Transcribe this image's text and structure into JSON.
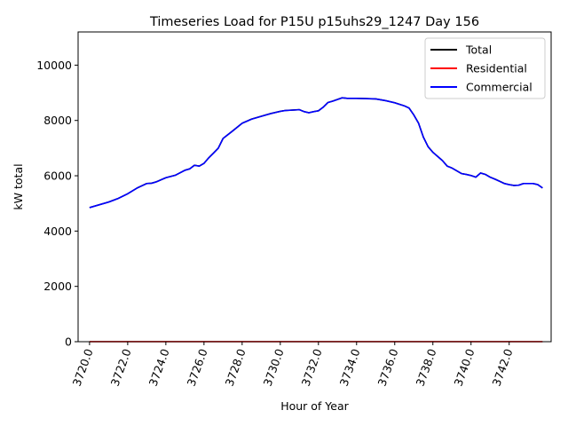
{
  "chart_data": {
    "type": "line",
    "title": "Timeseries Load for P15U p15uhs29_1247  Day 156",
    "xlabel": "Hour of Year",
    "ylabel": "kW total",
    "xlim": [
      3719.4,
      3744.2
    ],
    "ylim": [
      0,
      11200
    ],
    "xticks": [
      3720,
      3722,
      3724,
      3726,
      3728,
      3730,
      3732,
      3734,
      3736,
      3738,
      3740,
      3742
    ],
    "xtick_labels": [
      "3720.0",
      "3722.0",
      "3724.0",
      "3726.0",
      "3728.0",
      "3730.0",
      "3732.0",
      "3734.0",
      "3736.0",
      "3738.0",
      "3740.0",
      "3742.0"
    ],
    "yticks": [
      0,
      2000,
      4000,
      6000,
      8000,
      10000
    ],
    "ytick_labels": [
      "0",
      "2000",
      "4000",
      "6000",
      "8000",
      "10000"
    ],
    "legend_position": "top-right",
    "x": [
      3720,
      3720.5,
      3721,
      3721.5,
      3722,
      3722.5,
      3723,
      3723.25,
      3723.5,
      3724,
      3724.5,
      3725,
      3725.25,
      3725.5,
      3725.75,
      3726,
      3726.25,
      3726.5,
      3726.75,
      3727,
      3727.5,
      3728,
      3728.5,
      3729,
      3729.5,
      3730,
      3730.25,
      3730.5,
      3731,
      3731.25,
      3731.5,
      3731.75,
      3732,
      3732.25,
      3732.5,
      3732.75,
      3733,
      3733.25,
      3733.5,
      3734,
      3734.5,
      3735,
      3735.5,
      3736,
      3736.5,
      3736.75,
      3737,
      3737.25,
      3737.5,
      3737.75,
      3738,
      3738.25,
      3738.5,
      3738.75,
      3739,
      3739.25,
      3739.5,
      3739.75,
      3740,
      3740.25,
      3740.5,
      3740.75,
      3741,
      3741.25,
      3741.5,
      3741.75,
      3742,
      3742.25,
      3742.5,
      3742.75,
      3743,
      3743.25,
      3743.5,
      3743.75
    ],
    "series": [
      {
        "name": "Total",
        "color": "#000000",
        "values": [
          4850,
          4950,
          5050,
          5180,
          5350,
          5560,
          5720,
          5730,
          5780,
          5930,
          6020,
          6200,
          6250,
          6380,
          6350,
          6450,
          6650,
          6820,
          7000,
          7350,
          7620,
          7900,
          8050,
          8150,
          8250,
          8330,
          8360,
          8370,
          8390,
          8320,
          8280,
          8320,
          8350,
          8480,
          8650,
          8700,
          8760,
          8820,
          8800,
          8800,
          8790,
          8780,
          8720,
          8640,
          8530,
          8450,
          8200,
          7900,
          7400,
          7050,
          6850,
          6700,
          6550,
          6350,
          6280,
          6180,
          6080,
          6050,
          6010,
          5950,
          6100,
          6050,
          5950,
          5880,
          5800,
          5720,
          5680,
          5650,
          5660,
          5720,
          5720,
          5720,
          5680,
          5560
        ]
      },
      {
        "name": "Residential",
        "color": "#ff0000",
        "values": [
          2,
          2,
          2,
          2,
          2,
          2,
          2,
          2,
          2,
          2,
          2,
          2,
          2,
          2,
          2,
          2,
          2,
          2,
          2,
          2,
          2,
          2,
          2,
          2,
          2,
          2,
          2,
          2,
          2,
          2,
          2,
          2,
          2,
          2,
          2,
          2,
          2,
          2,
          2,
          2,
          2,
          2,
          2,
          2,
          2,
          2,
          2,
          2,
          2,
          2,
          2,
          2,
          2,
          2,
          2,
          2,
          2,
          2,
          2,
          2,
          2,
          2,
          2,
          2,
          2,
          2,
          2,
          2,
          2,
          2,
          2,
          2,
          2,
          2
        ]
      },
      {
        "name": "Commercial",
        "color": "#0000ff",
        "values": [
          4848,
          4948,
          5048,
          5178,
          5348,
          5558,
          5718,
          5728,
          5778,
          5928,
          6018,
          6198,
          6248,
          6378,
          6348,
          6448,
          6648,
          6818,
          6998,
          7348,
          7618,
          7898,
          8048,
          8148,
          8248,
          8328,
          8358,
          8368,
          8388,
          8318,
          8278,
          8318,
          8348,
          8478,
          8648,
          8698,
          8758,
          8818,
          8798,
          8798,
          8788,
          8778,
          8718,
          8638,
          8528,
          8448,
          8198,
          7898,
          7398,
          7048,
          6848,
          6698,
          6548,
          6348,
          6278,
          6178,
          6078,
          6048,
          6008,
          5948,
          6098,
          6048,
          5948,
          5878,
          5798,
          5718,
          5678,
          5648,
          5658,
          5718,
          5718,
          5718,
          5678,
          5558
        ]
      }
    ]
  }
}
